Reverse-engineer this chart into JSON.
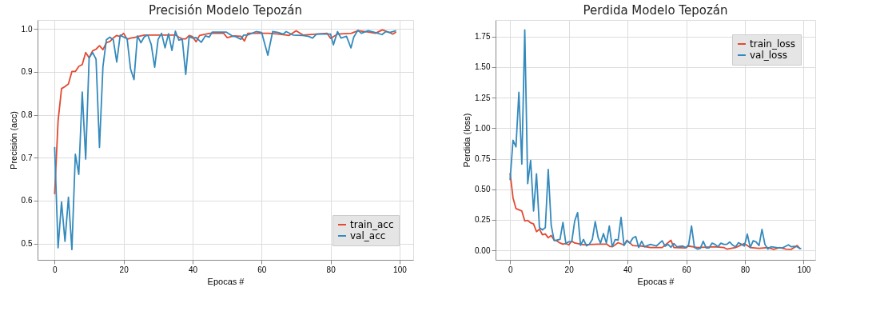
{
  "chart_data": [
    {
      "type": "line",
      "title": "Precisión Modelo Tepozán",
      "xlabel": "Epocas #",
      "ylabel": "Precisión (acc)",
      "xlim": [
        -4.95,
        103.95
      ],
      "ylim": [
        0.462,
        1.021
      ],
      "xticks": [
        0,
        20,
        40,
        60,
        80,
        100
      ],
      "yticks": [
        0.5,
        0.6,
        0.7,
        0.8,
        0.9,
        {
          "value": 1,
          "label": "1.0"
        }
      ],
      "grid": true,
      "legend": "bottom right",
      "line_style": "solid",
      "series": [
        {
          "name": "train_acc",
          "color": "#e24a33",
          "x": [
            0,
            1,
            2,
            3,
            4,
            5,
            6,
            7,
            8,
            9,
            10,
            11,
            12,
            13,
            14,
            15,
            16,
            17,
            18,
            19,
            20,
            21,
            22,
            23,
            24,
            25,
            26,
            30,
            35,
            36,
            37,
            38,
            39,
            40,
            41,
            42,
            45,
            49,
            50,
            52,
            54,
            55,
            56,
            60,
            62,
            65,
            68,
            70,
            72,
            76,
            79,
            80,
            82,
            86,
            88,
            91,
            93,
            95,
            97,
            98,
            99
          ],
          "values": [
            0.615,
            0.786,
            0.861,
            0.866,
            0.872,
            0.901,
            0.901,
            0.913,
            0.917,
            0.945,
            0.933,
            0.949,
            0.953,
            0.961,
            0.952,
            0.968,
            0.971,
            0.979,
            0.985,
            0.982,
            0.99,
            0.976,
            0.979,
            0.98,
            0.982,
            0.984,
            0.986,
            0.986,
            0.986,
            0.981,
            0.977,
            0.977,
            0.985,
            0.982,
            0.97,
            0.985,
            0.99,
            0.99,
            0.98,
            0.984,
            0.983,
            0.972,
            0.99,
            0.99,
            0.99,
            0.988,
            0.985,
            0.996,
            0.986,
            0.988,
            0.99,
            0.978,
            0.988,
            0.99,
            0.996,
            0.993,
            0.99,
            0.998,
            0.992,
            0.988,
            0.993
          ]
        },
        {
          "name": "val_acc",
          "color": "#348abd",
          "x": [
            0,
            1,
            2,
            3,
            4,
            5,
            6,
            7,
            8,
            9,
            10,
            11,
            12,
            13,
            14,
            15,
            16,
            17,
            18,
            19,
            20,
            21,
            22,
            23,
            24,
            25,
            26,
            27,
            28,
            29,
            30,
            31,
            32,
            33,
            34,
            35,
            36,
            37,
            38,
            39,
            40,
            41,
            42.5,
            43.7,
            44.8,
            45.7,
            49.7,
            51.7,
            52.5,
            54,
            54.8,
            56,
            58.4,
            60,
            61.8,
            63.2,
            64.8,
            66.3,
            67.1,
            69.1,
            71.9,
            73.5,
            74.8,
            75.9,
            77.5,
            79,
            80,
            80.8,
            82,
            83,
            84.6,
            85.9,
            86.7,
            87.9,
            88.9,
            90.9,
            92.9,
            94.9,
            96,
            97.1,
            99
          ],
          "values": [
            0.725,
            0.49,
            0.597,
            0.505,
            0.608,
            0.486,
            0.708,
            0.661,
            0.853,
            0.697,
            0.933,
            0.945,
            0.93,
            0.724,
            0.912,
            0.975,
            0.981,
            0.975,
            0.923,
            0.986,
            0.981,
            0.978,
            0.907,
            0.882,
            0.984,
            0.968,
            0.982,
            0.986,
            0.964,
            0.911,
            0.976,
            0.99,
            0.956,
            0.989,
            0.95,
            0.995,
            0.974,
            0.976,
            0.894,
            0.982,
            0.979,
            0.98,
            0.969,
            0.984,
            0.981,
            0.993,
            0.993,
            0.983,
            0.982,
            0.976,
            0.986,
            0.986,
            0.994,
            0.992,
            0.939,
            0.994,
            0.992,
            0.988,
            0.994,
            0.986,
            0.985,
            0.983,
            0.979,
            0.988,
            0.988,
            0.988,
            0.988,
            0.963,
            0.994,
            0.979,
            0.983,
            0.956,
            0.981,
            0.997,
            0.99,
            0.996,
            0.992,
            0.987,
            0.994,
            0.992,
            0.996
          ]
        }
      ]
    },
    {
      "type": "line",
      "title": "Perdida Modelo Tepozán",
      "xlabel": "Epocas #",
      "ylabel": "Perdida (loss)",
      "xlim": [
        -4.95,
        103.95
      ],
      "ylim": [
        -0.078,
        1.886
      ],
      "xticks": [
        0,
        20,
        40,
        60,
        80,
        100
      ],
      "yticks": [
        {
          "value": 0,
          "label": "0.00"
        },
        0.25,
        {
          "value": 0.5,
          "label": "0.50"
        },
        0.75,
        {
          "value": 1,
          "label": "1.00"
        },
        1.25,
        {
          "value": 1.5,
          "label": "1.50"
        },
        1.75
      ],
      "grid": true,
      "legend": "top right",
      "line_style": "solid",
      "series": [
        {
          "name": "train_loss",
          "color": "#e24a33",
          "x": [
            0,
            1,
            2,
            3,
            4,
            5,
            6,
            7,
            8,
            9,
            10,
            11,
            12,
            13,
            14,
            15,
            16,
            17,
            18,
            19,
            20,
            21,
            22,
            23,
            24,
            25,
            30,
            33,
            34,
            35,
            36.8,
            38.8,
            39.8,
            41.8,
            44.8,
            47.8,
            51.8,
            54.8,
            55.8,
            59.8,
            60.8,
            63.8,
            69.8,
            72.8,
            73.8,
            76.8,
            79.8,
            81.8,
            84.8,
            87.8,
            89.8,
            91.8,
            94,
            95.8,
            97.8,
            98.8
          ],
          "values": [
            0.633,
            0.43,
            0.342,
            0.332,
            0.322,
            0.241,
            0.245,
            0.225,
            0.216,
            0.153,
            0.173,
            0.128,
            0.134,
            0.103,
            0.122,
            0.084,
            0.076,
            0.06,
            0.05,
            0.056,
            0.045,
            0.076,
            0.06,
            0.056,
            0.05,
            0.045,
            0.05,
            0.05,
            0.031,
            0.031,
            0.063,
            0.043,
            0.082,
            0.039,
            0.035,
            0.023,
            0.023,
            0.082,
            0.023,
            0.02,
            0.035,
            0.023,
            0.029,
            0.023,
            0.01,
            0.023,
            0.055,
            0.023,
            0.016,
            0.023,
            0.008,
            0.023,
            0.01,
            0.008,
            0.039,
            0.012
          ]
        },
        {
          "name": "val_loss",
          "color": "#348abd",
          "x": [
            0,
            1,
            2,
            3,
            4,
            5,
            6,
            7,
            8,
            9,
            10,
            11,
            12,
            13,
            14,
            15,
            16,
            17,
            18,
            19,
            20,
            21,
            22,
            23,
            24,
            25,
            26,
            27,
            28,
            29,
            30,
            30.8,
            31.8,
            32.8,
            33.8,
            34.8,
            35.8,
            36.8,
            37.8,
            38.8,
            39.8,
            40.8,
            41.8,
            42.8,
            43.8,
            44.8,
            45.8,
            47.8,
            49.8,
            51.8,
            52.8,
            53.8,
            54.8,
            55.8,
            56.8,
            58.8,
            59.8,
            60.8,
            61.8,
            62.8,
            63.8,
            64.8,
            65.8,
            66.8,
            67.8,
            68.8,
            69.8,
            70.8,
            71.8,
            72.8,
            73.8,
            74.8,
            75.8,
            76.8,
            77.8,
            78.8,
            79.8,
            80.8,
            81.8,
            82.8,
            83.8,
            84.8,
            85.8,
            86.8,
            87.8,
            88.8,
            90.8,
            92.8,
            94.8,
            95.8,
            96.8,
            97.8,
            98.8,
            99.2
          ],
          "values": [
            0.575,
            0.901,
            0.847,
            1.294,
            0.707,
            1.805,
            0.546,
            0.736,
            0.322,
            0.627,
            0.186,
            0.167,
            0.186,
            0.662,
            0.206,
            0.08,
            0.084,
            0.089,
            0.229,
            0.056,
            0.07,
            0.07,
            0.239,
            0.309,
            0.041,
            0.089,
            0.037,
            0.05,
            0.089,
            0.235,
            0.103,
            0.059,
            0.137,
            0.059,
            0.2,
            0.03,
            0.088,
            0.084,
            0.27,
            0.039,
            0.078,
            0.059,
            0.1,
            0.113,
            0.023,
            0.074,
            0.029,
            0.049,
            0.035,
            0.078,
            0.033,
            0.049,
            0.025,
            0.055,
            0.029,
            0.035,
            0.023,
            0.043,
            0.2,
            0.023,
            0.01,
            0.016,
            0.074,
            0.02,
            0.02,
            0.059,
            0.049,
            0.029,
            0.059,
            0.049,
            0.049,
            0.068,
            0.043,
            0.029,
            0.063,
            0.049,
            0.035,
            0.133,
            0.023,
            0.078,
            0.068,
            0.039,
            0.172,
            0.049,
            0.01,
            0.029,
            0.023,
            0.02,
            0.045,
            0.029,
            0.033,
            0.029,
            0.014,
            0.016
          ]
        }
      ]
    }
  ]
}
